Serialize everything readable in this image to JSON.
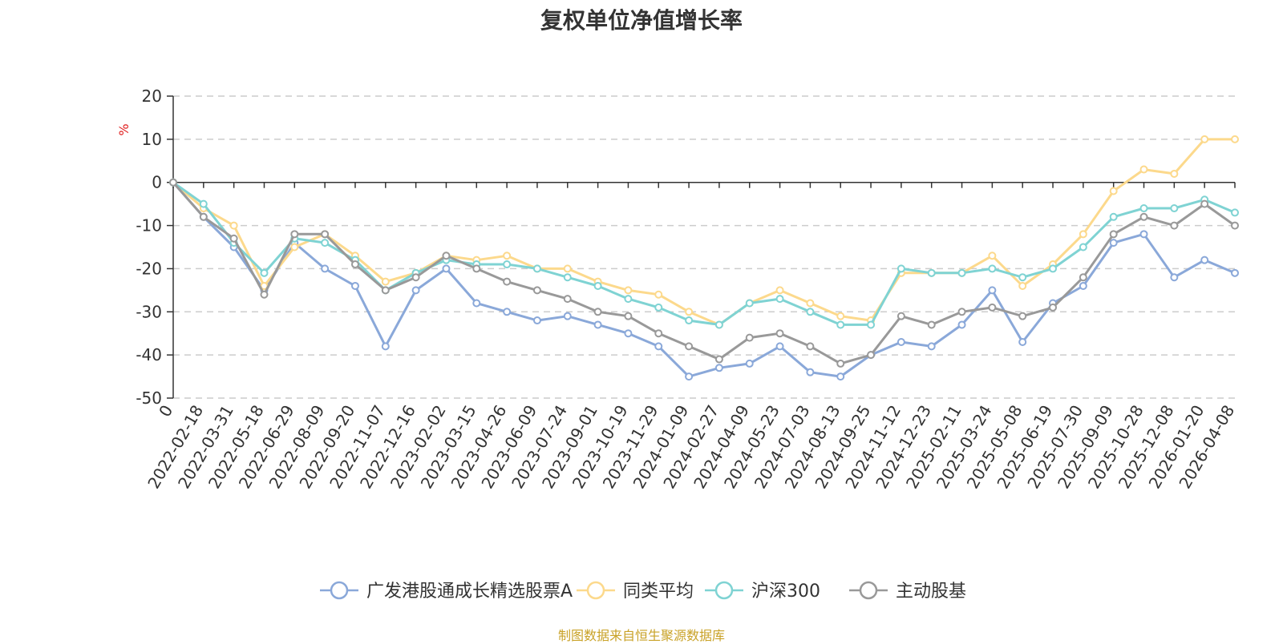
{
  "chart_data": {
    "type": "line",
    "title": "复权单位净值增长率",
    "ylabel": "%",
    "ylim": [
      -50,
      20
    ],
    "yticks": [
      20,
      10,
      0,
      -10,
      -20,
      -30,
      -40,
      -50
    ],
    "grid": true,
    "legend_position": "bottom",
    "categories": [
      "0",
      "2022-02-18",
      "2022-03-31",
      "2022-05-18",
      "2022-06-29",
      "2022-08-09",
      "2022-09-20",
      "2022-11-07",
      "2022-12-16",
      "2023-02-02",
      "2023-03-15",
      "2023-04-26",
      "2023-06-09",
      "2023-07-24",
      "2023-09-01",
      "2023-10-19",
      "2023-11-29",
      "2024-01-09",
      "2024-02-27",
      "2024-04-09",
      "2024-05-23",
      "2024-07-03",
      "2024-08-13",
      "2024-09-25",
      "2024-11-12",
      "2024-12-23",
      "2025-02-11",
      "2025-03-24",
      "2025-05-08",
      "2025-06-19",
      "2025-07-30",
      "2025-09-09",
      "2025-10-28",
      "2025-12-08",
      "2026-01-20",
      "2026-04-08"
    ],
    "series": [
      {
        "name": "广发港股通成长精选股票A",
        "color": "#8aa8d9",
        "values": [
          0,
          -8,
          -15,
          -25,
          -14,
          -20,
          -24,
          -38,
          -25,
          -20,
          -28,
          -30,
          -32,
          -31,
          -33,
          -35,
          -38,
          -45,
          -43,
          -42,
          -38,
          -44,
          -45,
          -40,
          -37,
          -38,
          -33,
          -25,
          -37,
          -28,
          -24,
          -14,
          -12,
          -22,
          -18,
          -21
        ]
      },
      {
        "name": "同类平均",
        "color": "#fcd98c",
        "values": [
          0,
          -6,
          -10,
          -24,
          -15,
          -12,
          -17,
          -23,
          -21,
          -17,
          -18,
          -17,
          -20,
          -20,
          -23,
          -25,
          -26,
          -30,
          -33,
          -28,
          -25,
          -28,
          -31,
          -32,
          -21,
          -21,
          -21,
          -17,
          -24,
          -19,
          -12,
          -2,
          3,
          2,
          10,
          10
        ]
      },
      {
        "name": "沪深300",
        "color": "#7fd3d3",
        "values": [
          0,
          -5,
          -14,
          -21,
          -13,
          -14,
          -18,
          -25,
          -21,
          -18,
          -19,
          -19,
          -20,
          -22,
          -24,
          -27,
          -29,
          -32,
          -33,
          -28,
          -27,
          -30,
          -33,
          -33,
          -20,
          -21,
          -21,
          -20,
          -22,
          -20,
          -15,
          -8,
          -6,
          -6,
          -4,
          -7
        ]
      },
      {
        "name": "主动股基",
        "color": "#999999",
        "values": [
          0,
          -8,
          -13,
          -26,
          -12,
          -12,
          -19,
          -25,
          -22,
          -17,
          -20,
          -23,
          -25,
          -27,
          -30,
          -31,
          -35,
          -38,
          -41,
          -36,
          -35,
          -38,
          -42,
          -40,
          -31,
          -33,
          -30,
          -29,
          -31,
          -29,
          -22,
          -12,
          -8,
          -10,
          -5,
          -10
        ]
      }
    ]
  },
  "source_note": "制图数据来自恒生聚源数据库"
}
